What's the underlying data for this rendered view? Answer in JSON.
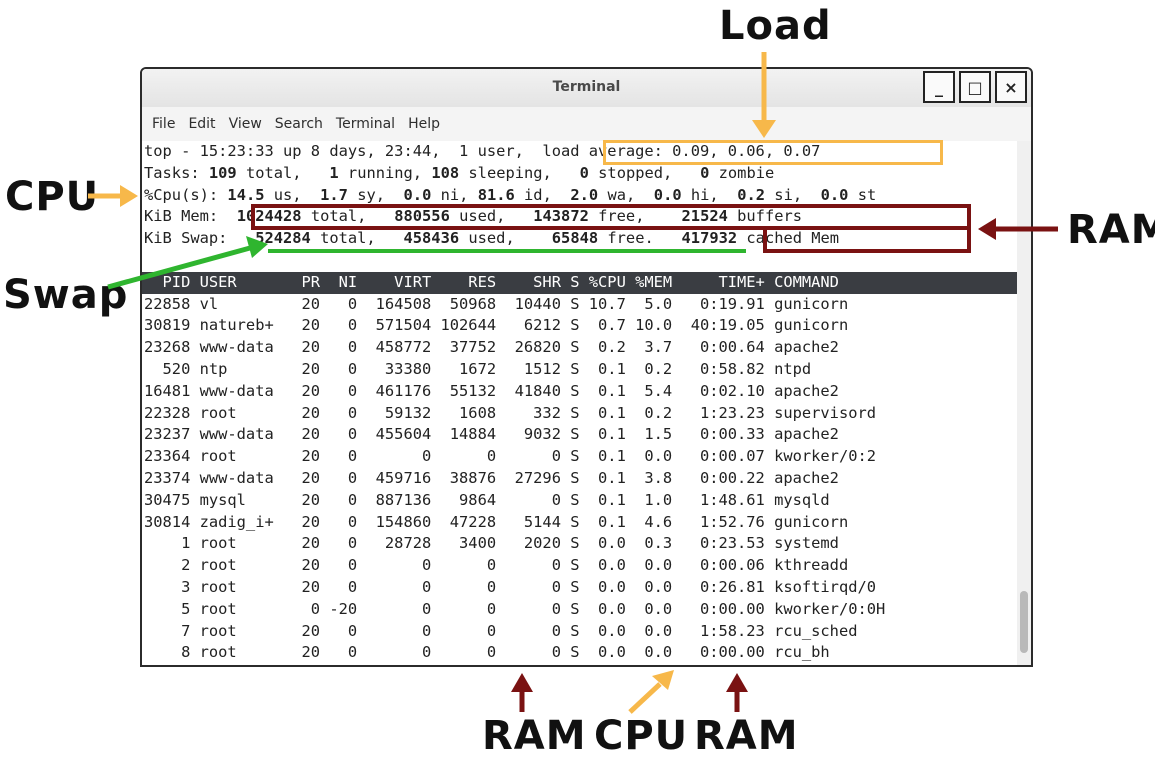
{
  "window": {
    "title": "Terminal",
    "minimize": "_",
    "maximize": "□",
    "close": "×"
  },
  "menu": [
    "File",
    "Edit",
    "View",
    "Search",
    "Terminal",
    "Help"
  ],
  "summary": {
    "line1": "top - 15:23:33 up 8 days, 23:44,  1 user,  load average: 0.09, 0.06, 0.07",
    "tasks": {
      "label": "Tasks:",
      "total": "109",
      "running": "1",
      "sleeping": "108",
      "stopped": "0",
      "zombie": "0"
    },
    "cpu": {
      "label": "%Cpu(s):",
      "us": "14.5",
      "sy": "1.7",
      "ni": "0.0",
      "id": "81.6",
      "wa": "2.0",
      "hi": "0.0",
      "si": "0.2",
      "st": "0.0"
    },
    "mem": {
      "label": "KiB Mem:",
      "total": "1024428",
      "used": "880556",
      "free": "143872",
      "buffers": "21524"
    },
    "swap": {
      "label": "KiB Swap:",
      "total": "524284",
      "used": "458436",
      "free": "65848",
      "cached": "417932"
    }
  },
  "columns": [
    "PID",
    "USER",
    "PR",
    "NI",
    "VIRT",
    "RES",
    "SHR",
    "S",
    "%CPU",
    "%MEM",
    "TIME+",
    "COMMAND"
  ],
  "processes": [
    [
      "22858",
      "vl",
      "20",
      "0",
      "164508",
      "50968",
      "10440",
      "S",
      "10.7",
      "5.0",
      "0:19.91",
      "gunicorn"
    ],
    [
      "30819",
      "natureb+",
      "20",
      "0",
      "571504",
      "102644",
      "6212",
      "S",
      "0.7",
      "10.0",
      "40:19.05",
      "gunicorn"
    ],
    [
      "23268",
      "www-data",
      "20",
      "0",
      "458772",
      "37752",
      "26820",
      "S",
      "0.2",
      "3.7",
      "0:00.64",
      "apache2"
    ],
    [
      "520",
      "ntp",
      "20",
      "0",
      "33380",
      "1672",
      "1512",
      "S",
      "0.1",
      "0.2",
      "0:58.82",
      "ntpd"
    ],
    [
      "16481",
      "www-data",
      "20",
      "0",
      "461176",
      "55132",
      "41840",
      "S",
      "0.1",
      "5.4",
      "0:02.10",
      "apache2"
    ],
    [
      "22328",
      "root",
      "20",
      "0",
      "59132",
      "1608",
      "332",
      "S",
      "0.1",
      "0.2",
      "1:23.23",
      "supervisord"
    ],
    [
      "23237",
      "www-data",
      "20",
      "0",
      "455604",
      "14884",
      "9032",
      "S",
      "0.1",
      "1.5",
      "0:00.33",
      "apache2"
    ],
    [
      "23364",
      "root",
      "20",
      "0",
      "0",
      "0",
      "0",
      "S",
      "0.1",
      "0.0",
      "0:00.07",
      "kworker/0:2"
    ],
    [
      "23374",
      "www-data",
      "20",
      "0",
      "459716",
      "38876",
      "27296",
      "S",
      "0.1",
      "3.8",
      "0:00.22",
      "apache2"
    ],
    [
      "30475",
      "mysql",
      "20",
      "0",
      "887136",
      "9864",
      "0",
      "S",
      "0.1",
      "1.0",
      "1:48.61",
      "mysqld"
    ],
    [
      "30814",
      "zadig_i+",
      "20",
      "0",
      "154860",
      "47228",
      "5144",
      "S",
      "0.1",
      "4.6",
      "1:52.76",
      "gunicorn"
    ],
    [
      "1",
      "root",
      "20",
      "0",
      "28728",
      "3400",
      "2020",
      "S",
      "0.0",
      "0.3",
      "0:23.53",
      "systemd"
    ],
    [
      "2",
      "root",
      "20",
      "0",
      "0",
      "0",
      "0",
      "S",
      "0.0",
      "0.0",
      "0:00.06",
      "kthreadd"
    ],
    [
      "3",
      "root",
      "20",
      "0",
      "0",
      "0",
      "0",
      "S",
      "0.0",
      "0.0",
      "0:26.81",
      "ksoftirqd/0"
    ],
    [
      "5",
      "root",
      "0",
      "-20",
      "0",
      "0",
      "0",
      "S",
      "0.0",
      "0.0",
      "0:00.00",
      "kworker/0:0H"
    ],
    [
      "7",
      "root",
      "20",
      "0",
      "0",
      "0",
      "0",
      "S",
      "0.0",
      "0.0",
      "1:58.23",
      "rcu_sched"
    ],
    [
      "8",
      "root",
      "20",
      "0",
      "0",
      "0",
      "0",
      "S",
      "0.0",
      "0.0",
      "0:00.00",
      "rcu_bh"
    ]
  ],
  "annotations": {
    "load": "Load",
    "cpu_left": "CPU",
    "swap": "Swap",
    "ram_right": "RAM",
    "ram_bottom_1": "RAM",
    "cpu_bottom": "CPU",
    "ram_bottom_2": "RAM"
  },
  "colors": {
    "load": "#f7b84a",
    "ram": "#7a1212",
    "swap": "#2fb52f",
    "header_bg": "#3a3d42"
  }
}
